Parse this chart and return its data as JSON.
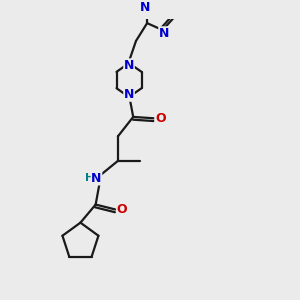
{
  "bg_color": "#ebebeb",
  "bond_color": "#1a1a1a",
  "N_color": "#0000cc",
  "O_color": "#cc0000",
  "H_color": "#008080",
  "line_width": 1.6,
  "font_size": 8.5,
  "fig_width": 3.0,
  "fig_height": 3.0,
  "dpi": 100,
  "xlim": [
    0,
    10
  ],
  "ylim": [
    0,
    10
  ]
}
